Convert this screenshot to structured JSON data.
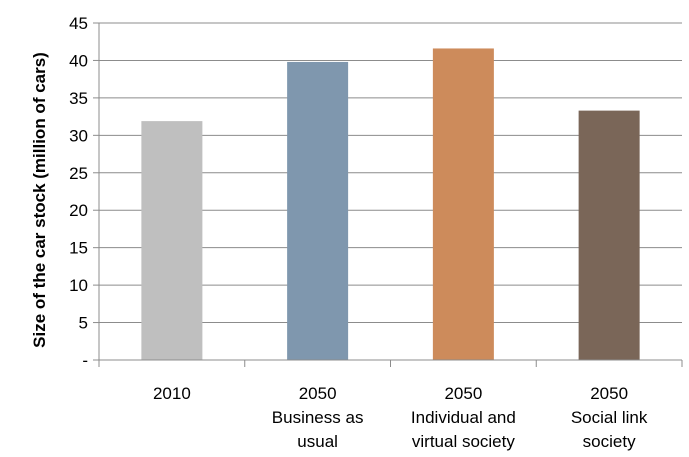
{
  "chart_data": {
    "type": "bar",
    "title": "",
    "xlabel": "",
    "ylabel": "Size of the car stock (million of cars)",
    "ylim": [
      0,
      45
    ],
    "y_ticks": [
      0,
      5,
      10,
      15,
      20,
      25,
      30,
      35,
      40,
      45
    ],
    "y_tick_labels": [
      "-",
      "5",
      "10",
      "15",
      "20",
      "25",
      "30",
      "35",
      "40",
      "45"
    ],
    "grid": true,
    "legend": "none",
    "categories": [
      [
        "2010"
      ],
      [
        "2050",
        "Business as",
        "usual"
      ],
      [
        "2050",
        "Individual and",
        "virtual society"
      ],
      [
        "2050",
        "Social link",
        "society"
      ]
    ],
    "values": [
      31.9,
      39.8,
      41.6,
      33.3
    ],
    "colors": [
      "#bfbfbf",
      "#7f97ae",
      "#cd8b5b",
      "#7a6658"
    ]
  }
}
